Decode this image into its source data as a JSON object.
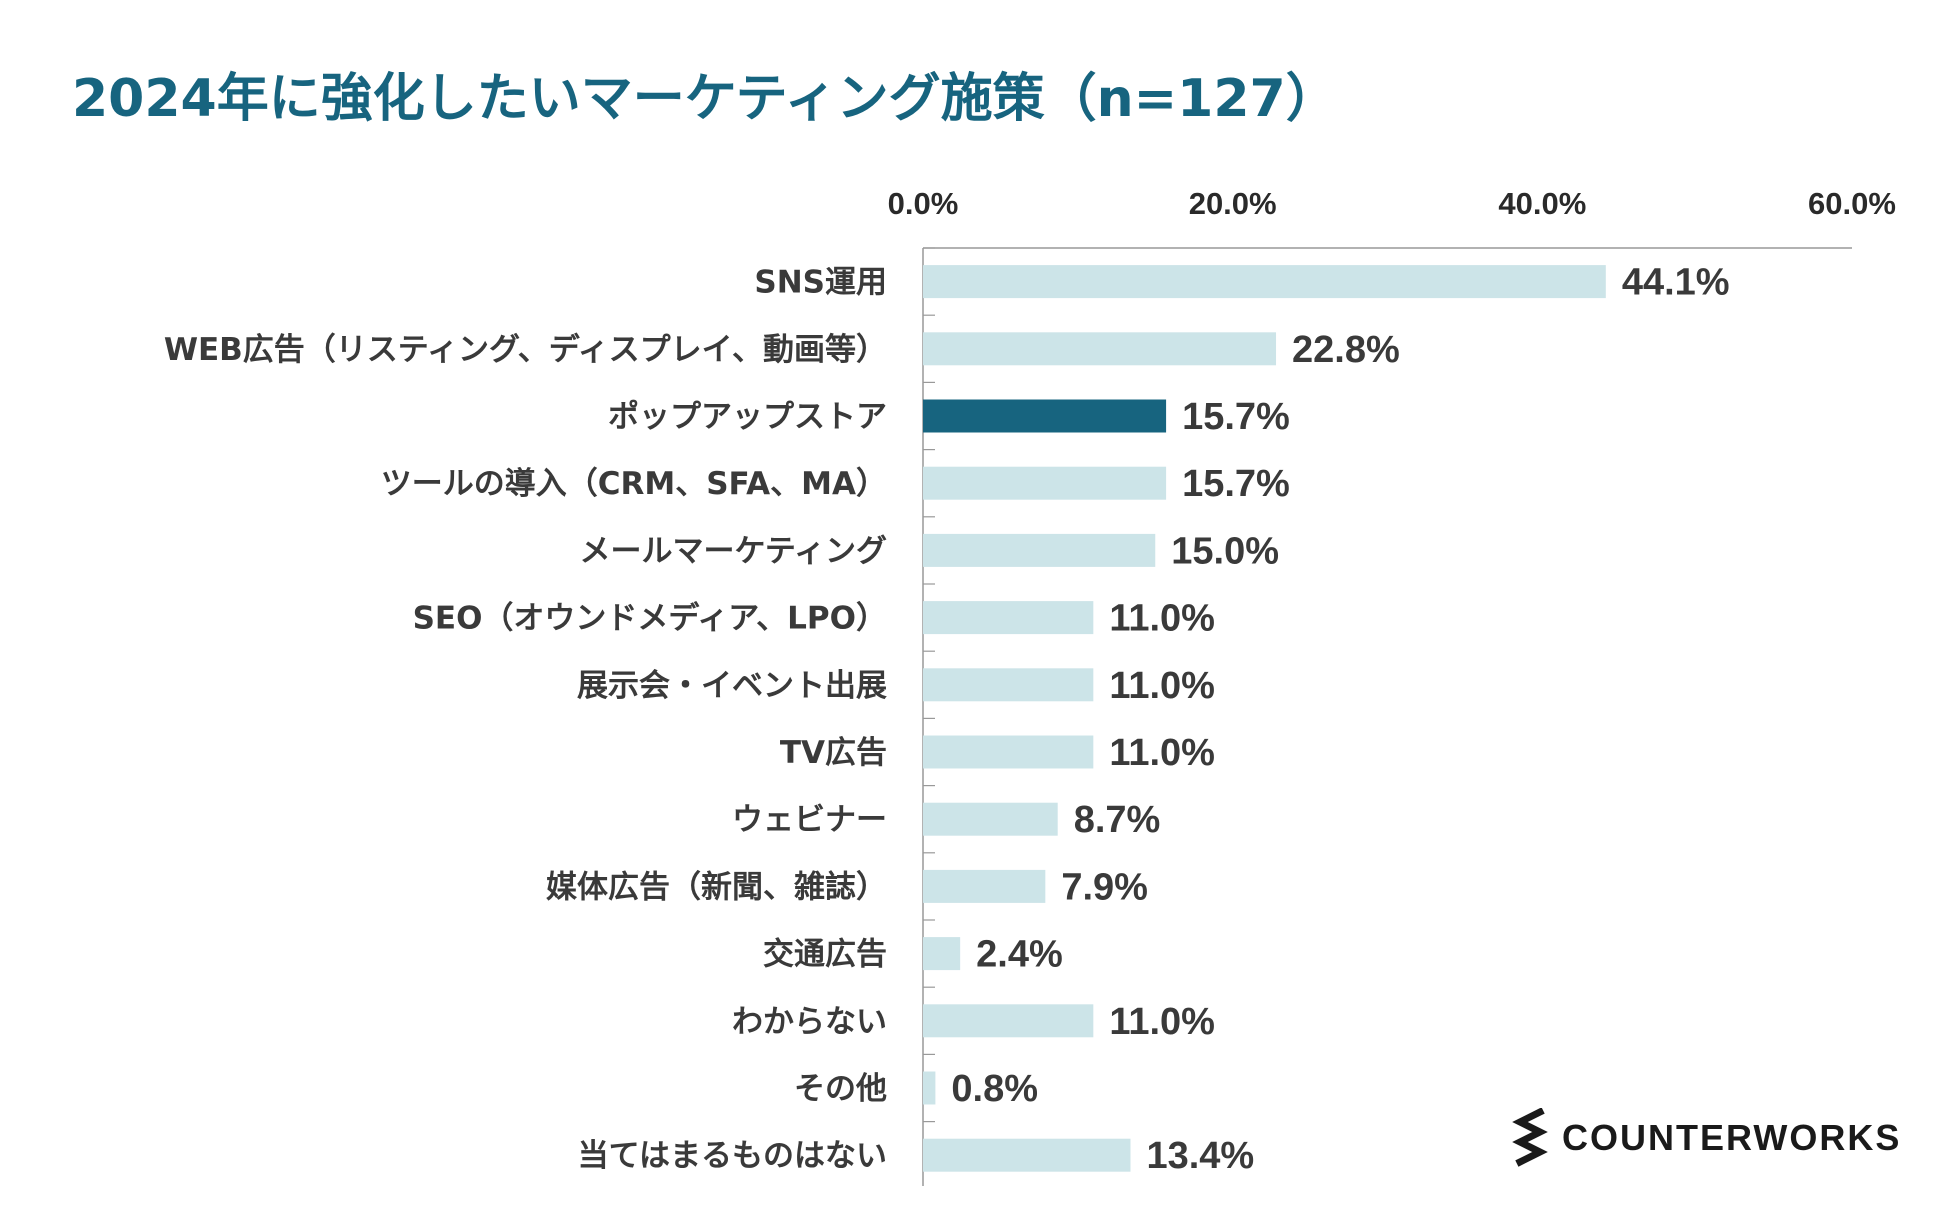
{
  "title": "2024年に強化したいマーケティング施策（n=127）",
  "brand": {
    "name": "COUNTERWORKS",
    "mark_icon": "zigzag-logo-icon"
  },
  "colors": {
    "title": "#17647f",
    "bar": "#cce4e8",
    "bar_highlight": "#17647f",
    "axis": "#999999"
  },
  "chart_data": {
    "type": "bar",
    "orientation": "horizontal",
    "title": "2024年に強化したいマーケティング施策（n=127）",
    "xlabel": "",
    "ylabel": "",
    "xlim": [
      0,
      60
    ],
    "xticks": [
      0,
      20,
      40,
      60
    ],
    "xtick_labels": [
      "0.0%",
      "20.0%",
      "40.0%",
      "60.0%"
    ],
    "x_axis_position": "top",
    "grid": false,
    "categories": [
      "SNS運用",
      "WEB広告（リスティング、ディスプレイ、動画等）",
      "ポップアップストア",
      "ツールの導入（CRM、SFA、MA）",
      "メールマーケティング",
      "SEO（オウンドメディア、LPO）",
      "展示会・イベント出展",
      "TV広告",
      "ウェビナー",
      "媒体広告（新聞、雑誌）",
      "交通広告",
      "わからない",
      "その他",
      "当てはまるものはない"
    ],
    "values": [
      44.1,
      22.8,
      15.7,
      15.7,
      15.0,
      11.0,
      11.0,
      11.0,
      8.7,
      7.9,
      2.4,
      11.0,
      0.8,
      13.4
    ],
    "value_labels": [
      "44.1%",
      "22.8%",
      "15.7%",
      "15.7%",
      "15.0%",
      "11.0%",
      "11.0%",
      "11.0%",
      "8.7%",
      "7.9%",
      "2.4%",
      "11.0%",
      "0.8%",
      "13.4%"
    ],
    "highlight_index": 2
  }
}
